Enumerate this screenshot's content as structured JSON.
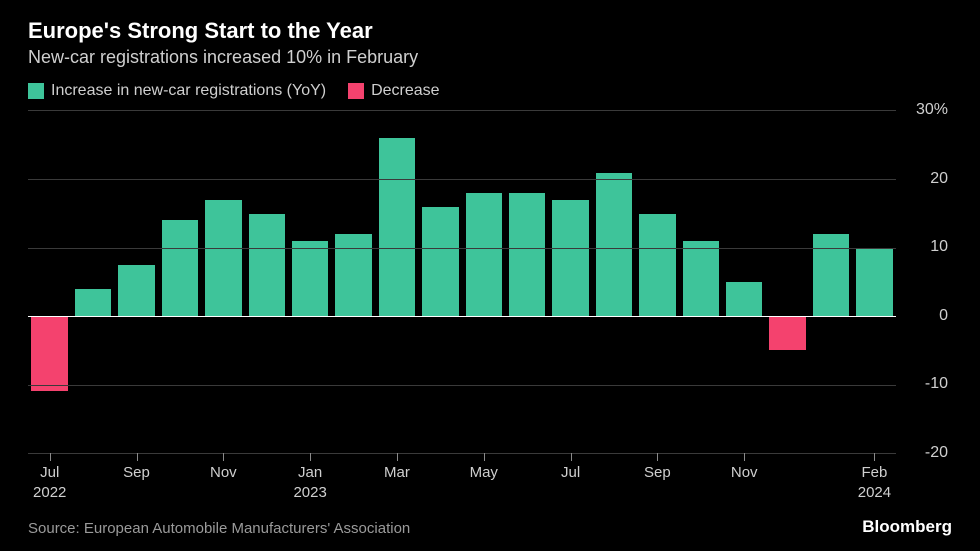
{
  "chart": {
    "type": "bar",
    "title": "Europe's Strong Start to the Year",
    "subtitle": "New-car registrations increased 10% in February",
    "legend": [
      {
        "label": "Increase in new-car registrations (YoY)",
        "color": "#3ec49a"
      },
      {
        "label": "Decrease",
        "color": "#f4426e"
      }
    ],
    "y_axis": {
      "min": -20,
      "max": 30,
      "ticks": [
        -20,
        -10,
        0,
        10,
        20,
        30
      ],
      "tick_labels": [
        "-20",
        "-10",
        "0",
        "10",
        "20",
        "30%"
      ],
      "grid_color": "#3a3a3a",
      "zero_color": "#ffffff",
      "label_color": "#cfcfcf",
      "label_fontsize": 16
    },
    "x_axis": {
      "labels": [
        "Jul\n2022",
        "",
        "Sep",
        "",
        "Nov",
        "",
        "Jan\n2023",
        "",
        "Mar",
        "",
        "May",
        "",
        "Jul",
        "",
        "Sep",
        "",
        "Nov",
        "",
        "",
        "Feb\n2024"
      ],
      "show_tick": [
        true,
        false,
        true,
        false,
        true,
        false,
        true,
        false,
        true,
        false,
        true,
        false,
        true,
        false,
        true,
        false,
        true,
        false,
        false,
        true
      ],
      "label_color": "#cfcfcf",
      "label_fontsize": 15
    },
    "series": {
      "values": [
        -11,
        4,
        7.5,
        14,
        17,
        15,
        11,
        12,
        26,
        16,
        18,
        18,
        17,
        21,
        15,
        11,
        5,
        -5,
        12,
        10
      ],
      "positive_color": "#3ec49a",
      "negative_color": "#f4426e"
    },
    "background_color": "#000000",
    "bar_gap_pct": 16
  },
  "footer": {
    "source": "Source: European Automobile Manufacturers' Association",
    "brand": "Bloomberg"
  }
}
